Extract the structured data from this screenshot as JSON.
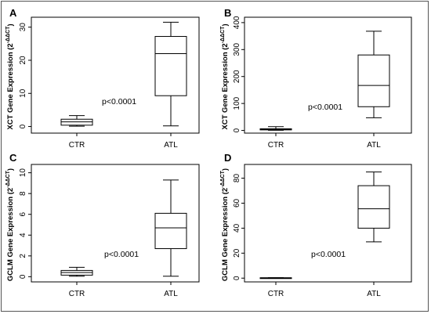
{
  "chart_data": [
    {
      "panel": "A",
      "type": "box",
      "ylabel": "XCT Gene Expression (2",
      "ylabel_sup": "-ΔΔCT",
      "ylabel_end": ")",
      "categories": [
        "CTR",
        "ATL"
      ],
      "yticks": [
        0,
        10,
        20,
        30
      ],
      "ylim": [
        -2,
        33
      ],
      "boxes": [
        {
          "min": 0.1,
          "q1": 0.4,
          "median": 1.4,
          "q3": 2.2,
          "max": 3.3
        },
        {
          "min": 0.2,
          "q1": 9.3,
          "median": 22.0,
          "q3": 27.2,
          "max": 31.5
        }
      ],
      "annotation": "p<0.0001"
    },
    {
      "panel": "B",
      "type": "box",
      "ylabel": "XCT Gene Expression (2",
      "ylabel_sup": "-ΔΔCT",
      "ylabel_end": ")",
      "categories": [
        "CTR",
        "ATL"
      ],
      "yticks": [
        0,
        100,
        200,
        300,
        400
      ],
      "ylim": [
        -10,
        420
      ],
      "boxes": [
        {
          "min": 0.5,
          "q1": 2,
          "median": 4,
          "q3": 6,
          "max": 14
        },
        {
          "min": 47,
          "q1": 88,
          "median": 167,
          "q3": 280,
          "max": 368
        }
      ],
      "annotation": "p<0.0001"
    },
    {
      "panel": "C",
      "type": "box",
      "ylabel": "GCLM Gene Expression (2",
      "ylabel_sup": "-ΔΔCT",
      "ylabel_end": ")",
      "categories": [
        "CTR",
        "ATL"
      ],
      "yticks": [
        0,
        2,
        4,
        6,
        8,
        10
      ],
      "ylim": [
        -0.5,
        10.8
      ],
      "boxes": [
        {
          "min": 0.05,
          "q1": 0.15,
          "median": 0.4,
          "q3": 0.6,
          "max": 0.9
        },
        {
          "min": 0.05,
          "q1": 2.7,
          "median": 4.7,
          "q3": 6.1,
          "max": 9.3
        }
      ],
      "annotation": "p<0.0001"
    },
    {
      "panel": "D",
      "type": "box",
      "ylabel": "GCLM Gene Expression (2",
      "ylabel_sup": "-ΔΔCT",
      "ylabel_end": ")",
      "categories": [
        "CTR",
        "ATL"
      ],
      "yticks": [
        0,
        20,
        40,
        60,
        80
      ],
      "ylim": [
        -3,
        91
      ],
      "boxes": [
        {
          "min": 0,
          "q1": 0.1,
          "median": 0.2,
          "q3": 0.3,
          "max": 0.4
        },
        {
          "min": 29,
          "q1": 40,
          "median": 55.5,
          "q3": 74,
          "max": 85
        }
      ],
      "annotation": "p<0.0001"
    }
  ]
}
